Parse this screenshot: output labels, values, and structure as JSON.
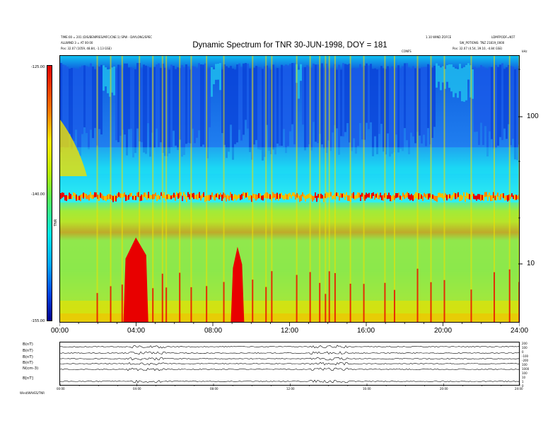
{
  "header": {
    "left_line1": "TIME:00 = 201 (DIS/BENPRES/MFC/CNE:1) SPW - DAYLONG/SPEC",
    "left_line2": "ALLWIND 3 = AT 00:00",
    "left_line3": "Pos:    32.07 (1059, 48.84, -1.13 GSE)",
    "right_line1": "1.10 WIND ZOFCE",
    "right_line2": "LDMFPODF=N5T",
    "right_line3": "SW_POTIONS: TNZ 21819_0000",
    "right_line4": "Pos:    32.07 (4.54, 39.10, -4.84 GSE)",
    "centre_small": "CONFS",
    "corner_right": "kHz"
  },
  "chart_data": {
    "type": "heatmap",
    "title": "Dynamic Spectrum for TNR 30-JUN-1998, DOY = 181",
    "x_tick_labels": [
      "00:00",
      "04:00",
      "08:00",
      "12:00",
      "16:00",
      "20:00",
      "24:00"
    ],
    "x_range_hours": [
      0,
      24
    ],
    "y_tick_labels": [
      "100",
      "10"
    ],
    "y_scale": "log",
    "y_range_khz": [
      4,
      245
    ],
    "colorbar": {
      "label": "TNR",
      "tick_labels": [
        "-125.00",
        "-140.00",
        "-155.00"
      ],
      "range": [
        -155,
        -125
      ],
      "colors": [
        "#e00000",
        "#ff7a00",
        "#ffee00",
        "#55ee55",
        "#00e8e8",
        "#00a8ff",
        "#0040e0",
        "#000090"
      ]
    },
    "features": {
      "intense_bursts": [
        {
          "start_hour": 3.3,
          "end_hour": 4.6,
          "low_khz": 4,
          "high_khz": 15
        },
        {
          "start_hour": 8.9,
          "end_hour": 9.6,
          "low_khz": 4,
          "high_khz": 13
        }
      ],
      "plasma_line_khz": 28,
      "band_edge_khz": 45
    }
  },
  "timeseries": {
    "left_labels": [
      "B(nT)",
      "B(nT)",
      "B(nT)",
      "B(nT)",
      "N(cm-3)",
      "B[nT]"
    ],
    "right_labels": [
      "200",
      "100",
      "0",
      "-100",
      "-200",
      "100",
      "1000",
      "100",
      "10",
      "1",
      "0"
    ],
    "x_tick_labels": [
      "00:00",
      "04:00",
      "08:00",
      "12:00",
      "16:00",
      "20:00",
      "24:00"
    ],
    "footer": "Wind/WAVES/TNR"
  }
}
